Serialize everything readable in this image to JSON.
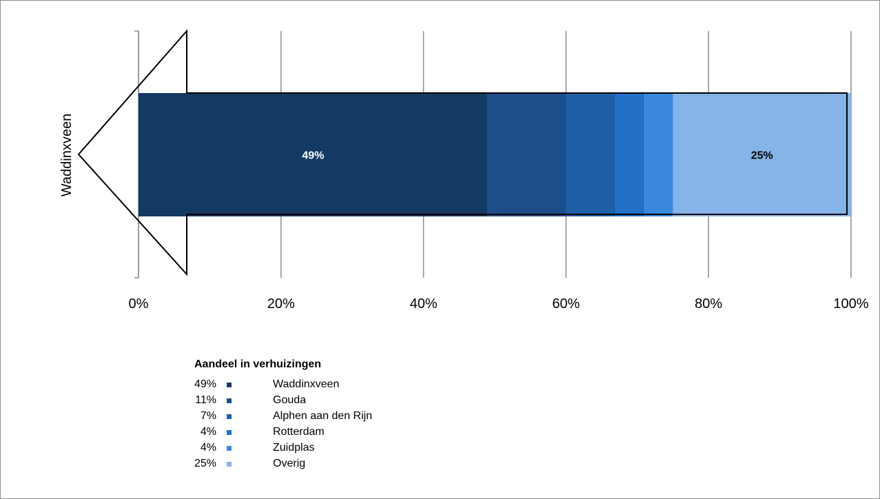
{
  "chart_data": {
    "type": "bar",
    "orientation": "horizontal",
    "stacked": true,
    "categories": [
      "Waddinxveen"
    ],
    "xlim": [
      0,
      100
    ],
    "x_ticks": [
      "0%",
      "20%",
      "40%",
      "60%",
      "80%",
      "100%"
    ],
    "grid": true,
    "series": [
      {
        "name": "Waddinxveen",
        "values": [
          49
        ],
        "color": "#133a63",
        "label": "49%",
        "legend_pct": "49%"
      },
      {
        "name": "Gouda",
        "values": [
          11
        ],
        "color": "#1b4e8a",
        "label": "",
        "legend_pct": "11%"
      },
      {
        "name": "Alphen aan den Rijn",
        "values": [
          7
        ],
        "color": "#1e5fa8",
        "label": "",
        "legend_pct": "7%"
      },
      {
        "name": "Rotterdam",
        "values": [
          4
        ],
        "color": "#2370c8",
        "label": "",
        "legend_pct": "4%"
      },
      {
        "name": "Zuidplas",
        "values": [
          4
        ],
        "color": "#3a88dc",
        "label": "",
        "legend_pct": "4%"
      },
      {
        "name": "Overig",
        "values": [
          25
        ],
        "color": "#84b4e8",
        "label": "25%",
        "legend_pct": "25%"
      }
    ],
    "legend": {
      "title": "Aandeel in verhuizingen",
      "placement": "bottom-left"
    }
  }
}
